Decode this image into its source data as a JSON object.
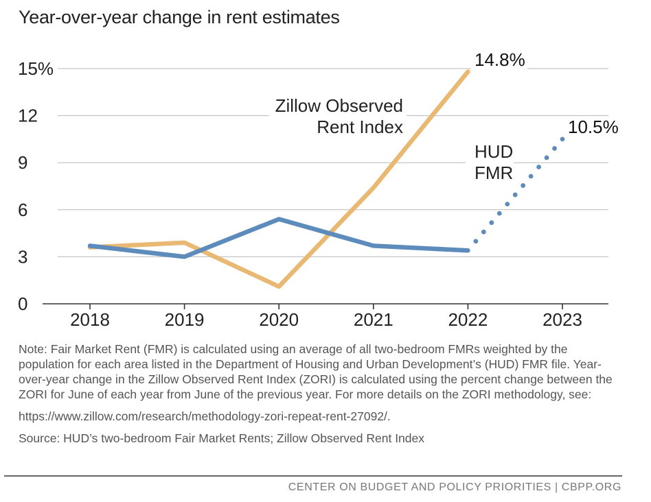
{
  "chart_data": {
    "type": "line",
    "title": "Year-over-year change in rent estimates",
    "x": [
      "2018",
      "2019",
      "2020",
      "2021",
      "2022",
      "2023"
    ],
    "ylim": [
      0,
      15
    ],
    "yticks": [
      0,
      3,
      6,
      9,
      12,
      15
    ],
    "ytick_labels": [
      "0",
      "3",
      "6",
      "9",
      "12",
      "15%"
    ],
    "grid": true,
    "series": [
      {
        "name": "Zillow Observed Rent Index",
        "name_lines": [
          "Zillow Observed",
          "Rent Index"
        ],
        "color": "#E9B872",
        "values": [
          3.6,
          3.9,
          1.1,
          7.4,
          14.8,
          null
        ],
        "end_label": "14.8%"
      },
      {
        "name": "HUD FMR",
        "name_lines": [
          "HUD",
          "FMR"
        ],
        "color": "#5D8BBB",
        "values": [
          3.7,
          3.0,
          5.4,
          3.7,
          3.4,
          null
        ],
        "projection": {
          "from": "2022",
          "to": "2023",
          "from_value": 3.4,
          "to_value": 10.5
        },
        "end_label": "10.5%"
      }
    ]
  },
  "notes": {
    "note": "Note: Fair Market Rent (FMR) is calculated using an average of all two-bedroom FMRs weighted by the population for each area listed in the Department of Housing and Urban Development’s (HUD) FMR file. Year-over-year change in the Zillow Observed Rent Index (ZORI) is calculated using the percent change between the ZORI for June of each year from June of the previous year. For more details on the ZORI methodology, see:",
    "url": "https://www.zillow.com/research/methodology-zori-repeat-rent-27092/.",
    "source": "Source: HUD’s two-bedroom Fair Market Rents; Zillow Observed Rent Index"
  },
  "footer": {
    "credit": "CENTER ON BUDGET AND POLICY PRIORITIES | CBPP.ORG"
  }
}
